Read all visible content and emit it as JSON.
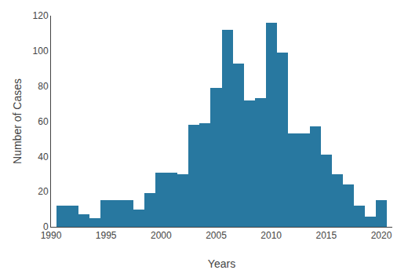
{
  "chart_data": {
    "type": "bar",
    "x": [
      1991,
      1992,
      1993,
      1994,
      1995,
      1996,
      1997,
      1998,
      1999,
      2000,
      2001,
      2002,
      2003,
      2004,
      2005,
      2006,
      2007,
      2008,
      2009,
      2010,
      2011,
      2012,
      2013,
      2014,
      2015,
      2016,
      2017,
      2018,
      2019,
      2020
    ],
    "values": [
      12,
      12,
      7,
      5,
      15,
      15,
      15,
      10,
      19,
      31,
      31,
      30,
      58,
      59,
      79,
      112,
      93,
      72,
      73,
      116,
      99,
      53,
      53,
      57,
      41,
      30,
      24,
      12,
      6,
      15
    ],
    "color": "#2878a0",
    "xlabel": "Years",
    "ylabel": "Number of Cases",
    "xlim": [
      1990,
      2021
    ],
    "ylim": [
      0,
      120
    ],
    "xticks": [
      1990,
      1995,
      2000,
      2005,
      2010,
      2015,
      2020
    ],
    "yticks": [
      0,
      20,
      40,
      60,
      80,
      100,
      120
    ],
    "grid": false
  }
}
